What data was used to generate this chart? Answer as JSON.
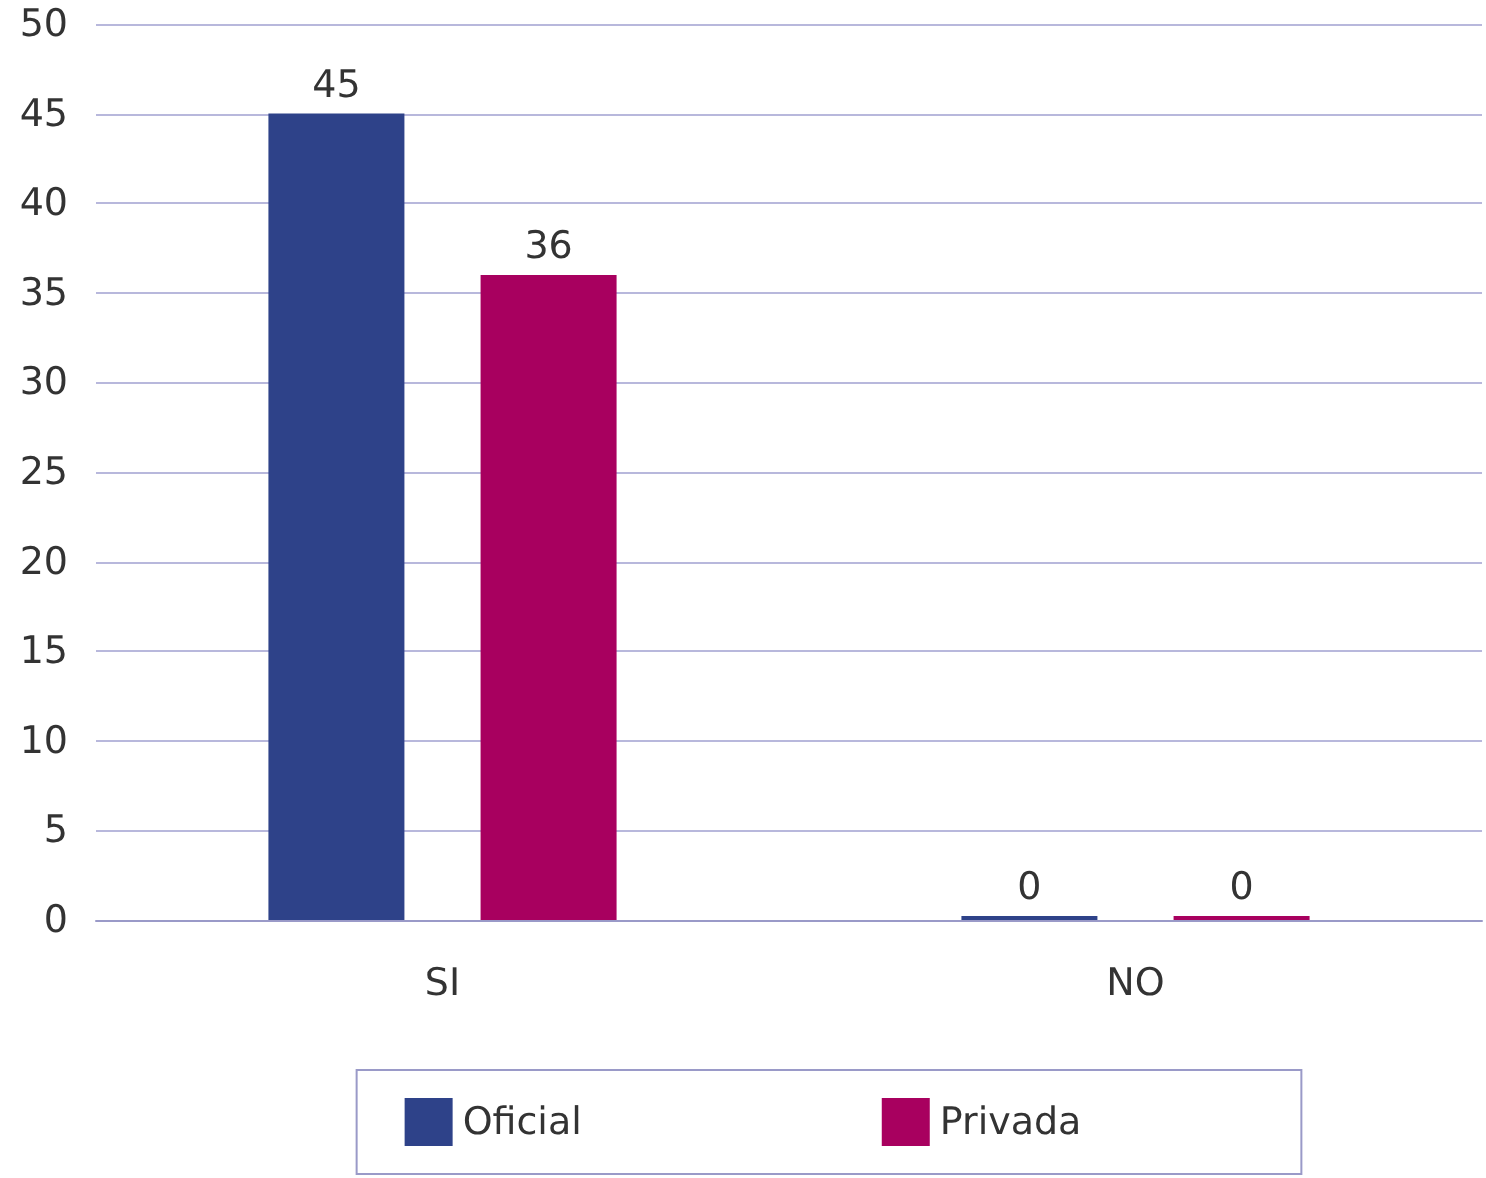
{
  "chart_data": {
    "type": "bar",
    "categories": [
      "SI",
      "NO"
    ],
    "series": [
      {
        "name": "Oficial",
        "color": "#2e4289",
        "values": [
          45,
          0
        ]
      },
      {
        "name": "Privada",
        "color": "#a8005f",
        "values": [
          36,
          0
        ]
      }
    ],
    "ylim": [
      0,
      50
    ],
    "yticks": [
      0,
      5,
      10,
      15,
      20,
      25,
      30,
      35,
      40,
      45,
      50
    ],
    "grid": "y",
    "legend": "bottom",
    "data_labels": true
  }
}
